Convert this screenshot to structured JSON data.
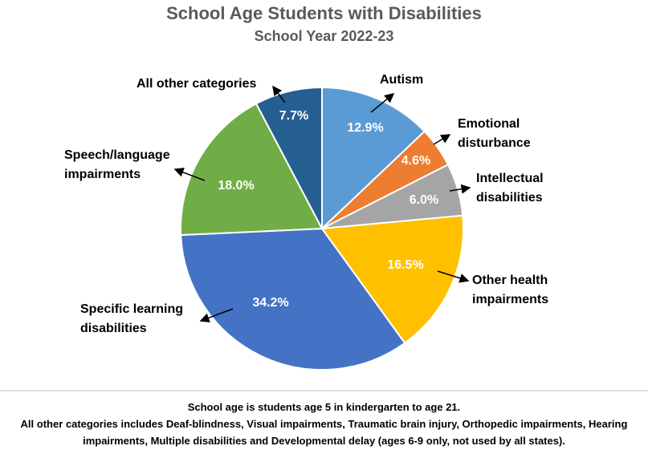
{
  "chart_data": {
    "type": "pie",
    "title": "School Age Students with Disabilities",
    "subtitle": "School Year 2022-23",
    "categories": [
      "Autism",
      "Emotional disturbance",
      "Intellectual disabilities",
      "Other health impairments",
      "Specific learning disabilities",
      "Speech/language impairments",
      "All other categories"
    ],
    "values": [
      12.9,
      4.6,
      6.0,
      16.5,
      34.2,
      18.0,
      7.7
    ],
    "value_labels": [
      "12.9%",
      "4.6%",
      "6.0%",
      "16.5%",
      "34.2%",
      "18.0%",
      "7.7%"
    ],
    "colors": [
      "#5b9bd5",
      "#ed7d31",
      "#a5a5a5",
      "#ffc000",
      "#4472c4",
      "#70ad47",
      "#255e91"
    ],
    "notes": [
      "School age is students age 5 in kindergarten to age 21.",
      "All other categories includes Deaf-blindness, Visual impairments, Traumatic brain injury, Orthopedic impairments, Hearing impairments, Multiple disabilities and Developmental delay (ages 6-9 only, not used by all states)."
    ]
  }
}
